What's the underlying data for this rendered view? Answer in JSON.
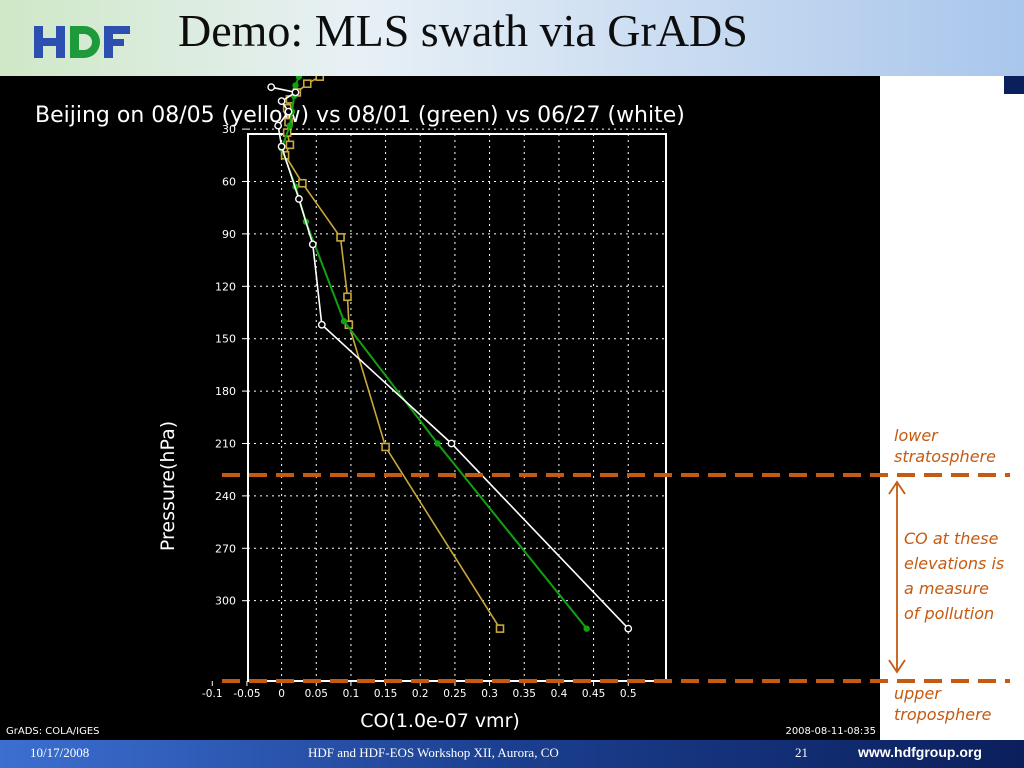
{
  "slide": {
    "title": "Demo: MLS swath via GrADS",
    "footer": {
      "date": "10/17/2008",
      "event": "HDF and HDF-EOS Workshop XII, Aurora, CO",
      "page": "21",
      "url": "www.hdfgroup.org"
    },
    "annotations": {
      "lower": [
        "lower",
        "stratosphere"
      ],
      "middle": [
        "CO at these",
        "elevations is",
        "a measure",
        "of pollution"
      ],
      "upper": [
        "upper",
        "troposphere"
      ]
    },
    "colors": {
      "annotation": "#c55a11",
      "yellow": "#c8a83c",
      "green": "#12a012",
      "white": "#ffffff"
    }
  },
  "chart_data": {
    "type": "line",
    "title": "Beijing on 08/05 (yellow) vs 08/01 (green) vs 06/27 (white)",
    "xlabel": "CO(1.0e-07 vmr)",
    "ylabel": "Pressure(hPa)",
    "credit": "GrADS: COLA/IGES",
    "timestamp": "2008-08-11-08:35",
    "xlim": [
      -0.1,
      0.5
    ],
    "ylim": [
      316,
      0
    ],
    "xticks": [
      -0.1,
      -0.05,
      0,
      0.05,
      0.1,
      0.15,
      0.2,
      0.25,
      0.3,
      0.35,
      0.4,
      0.45,
      0.5
    ],
    "xtick_labels": [
      "-0.1",
      "-0.05",
      "0",
      "0.05",
      "0.1",
      "0.15",
      "0.2",
      "0.25",
      "0.3",
      "0.35",
      "0.4",
      "0.45",
      "0.5"
    ],
    "yticks": [
      30,
      60,
      90,
      120,
      150,
      180,
      210,
      240,
      270,
      300
    ],
    "ytick_labels": [
      "30",
      "60",
      "90",
      "120",
      "150",
      "180",
      "210",
      "240",
      "270",
      "300"
    ],
    "grid": true,
    "series": [
      {
        "name": "yellow",
        "color": "#c8a83c",
        "marker": "square",
        "points": [
          [
            0.055,
            0
          ],
          [
            0.037,
            4
          ],
          [
            0.022,
            9
          ],
          [
            0.012,
            13
          ],
          [
            0.008,
            18
          ],
          [
            0.01,
            26
          ],
          [
            0.008,
            32
          ],
          [
            0.012,
            39
          ],
          [
            0.005,
            45
          ],
          [
            0.03,
            61
          ],
          [
            0.085,
            92
          ],
          [
            0.095,
            126
          ],
          [
            0.097,
            142
          ],
          [
            0.15,
            212
          ],
          [
            0.315,
            316
          ]
        ]
      },
      {
        "name": "green",
        "color": "#12a012",
        "marker": "circle",
        "points": [
          [
            0.025,
            0
          ],
          [
            0.02,
            5
          ],
          [
            0.018,
            11
          ],
          [
            0.015,
            20
          ],
          [
            0.012,
            28
          ],
          [
            0.0,
            41
          ],
          [
            0.02,
            63
          ],
          [
            0.035,
            83
          ],
          [
            0.09,
            140
          ],
          [
            0.225,
            210
          ],
          [
            0.44,
            316
          ]
        ]
      },
      {
        "name": "white",
        "color": "#ffffff",
        "marker": "circle",
        "points": [
          [
            -0.015,
            6
          ],
          [
            0.02,
            9
          ],
          [
            0.0,
            14
          ],
          [
            0.01,
            20
          ],
          [
            -0.005,
            28
          ],
          [
            0.0,
            40
          ],
          [
            0.025,
            70
          ],
          [
            0.045,
            96
          ],
          [
            0.058,
            142
          ],
          [
            0.245,
            210
          ],
          [
            0.5,
            316
          ]
        ]
      }
    ],
    "dashed_levels": [
      195,
      316
    ]
  }
}
